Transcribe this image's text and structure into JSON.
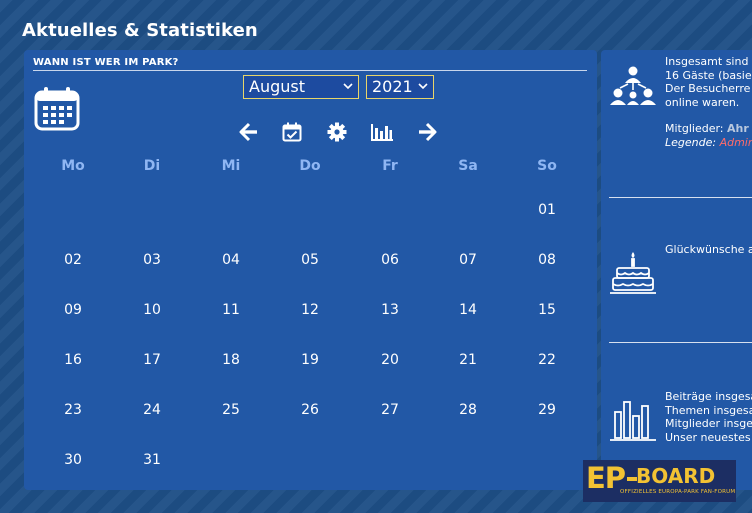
{
  "section": {
    "title": "Aktuelles & Statistiken"
  },
  "calendar": {
    "header": "WANN IST WER IM PARK?",
    "month": "August",
    "year": "2021",
    "weekdays": [
      "Mo",
      "Di",
      "Mi",
      "Do",
      "Fr",
      "Sa",
      "So"
    ],
    "days": [
      "01",
      "02",
      "03",
      "04",
      "05",
      "06",
      "07",
      "08",
      "09",
      "10",
      "11",
      "12",
      "13",
      "14",
      "15",
      "16",
      "17",
      "18",
      "19",
      "20",
      "21",
      "22",
      "23",
      "24",
      "25",
      "26",
      "27",
      "28",
      "29",
      "30",
      "31"
    ],
    "nav_icons": [
      "arrow-left-icon",
      "calendar-check-icon",
      "gear-icon",
      "bar-chart-icon",
      "arrow-right-icon"
    ]
  },
  "stats": {
    "online": {
      "line1": "Insgesamt sind",
      "line2": "16 Gäste (basie",
      "line3": "Der Besucherre",
      "line4": "online waren.",
      "members_label": "Mitglieder:",
      "members_value": "Ahr",
      "legend_label": "Legende:",
      "legend_admin": "Admin"
    },
    "birthday": {
      "line1": "Glückwünsche a"
    },
    "statistics": {
      "line1": "Beiträge insgesa",
      "line2": "Themen insgesa",
      "line3": "Mitglieder insge",
      "line4": "Unser neuestes"
    }
  },
  "logo": {
    "ep": "EP",
    "board": "BOARD",
    "tagline": "Offizielles Europa-Park Fan-Forum",
    "colors": {
      "primary": "#f2c233",
      "background": "#1c2e63"
    }
  },
  "colors": {
    "page_bg": "#1e4f86",
    "panel_bg": "#2258a6",
    "weekday": "#8fb6f3",
    "select_border": "#e8d56a",
    "admin": "#ff6b6b"
  }
}
